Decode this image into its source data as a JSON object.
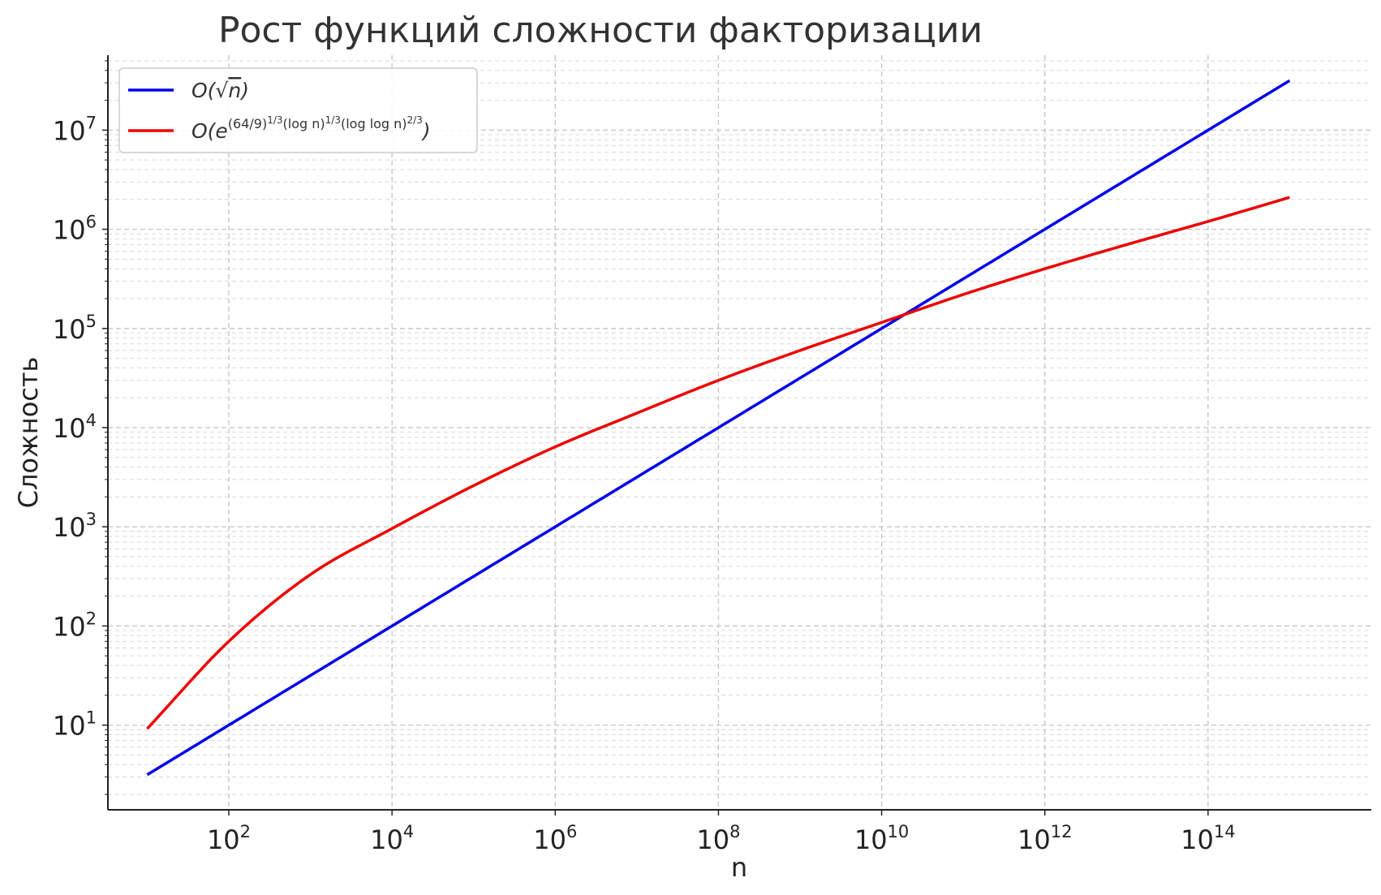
{
  "chart_data": {
    "type": "line",
    "title": "Рост функций сложности факторизации",
    "xlabel": "n",
    "ylabel": "Сложность",
    "xscale": "log",
    "yscale": "log",
    "xlim": [
      3.3,
      10000000000000000
    ],
    "ylim": [
      1.4,
      57000000
    ],
    "xticks": [
      {
        "value": 100,
        "base": "10",
        "exp": "2"
      },
      {
        "value": 10000,
        "base": "10",
        "exp": "4"
      },
      {
        "value": 1000000,
        "base": "10",
        "exp": "6"
      },
      {
        "value": 100000000,
        "base": "10",
        "exp": "8"
      },
      {
        "value": 10000000000,
        "base": "10",
        "exp": "10"
      },
      {
        "value": 1000000000000,
        "base": "10",
        "exp": "12"
      },
      {
        "value": 100000000000000,
        "base": "10",
        "exp": "14"
      }
    ],
    "yticks": [
      {
        "value": 10,
        "base": "10",
        "exp": "1"
      },
      {
        "value": 100,
        "base": "10",
        "exp": "2"
      },
      {
        "value": 1000,
        "base": "10",
        "exp": "3"
      },
      {
        "value": 10000,
        "base": "10",
        "exp": "4"
      },
      {
        "value": 100000,
        "base": "10",
        "exp": "5"
      },
      {
        "value": 1000000,
        "base": "10",
        "exp": "6"
      },
      {
        "value": 10000000,
        "base": "10",
        "exp": "7"
      }
    ],
    "grid": true,
    "legend_position": "top-left",
    "series": [
      {
        "name": "O(√n)",
        "color": "#0000ee",
        "x": [
          10,
          100,
          10000,
          1000000,
          100000000,
          10000000000,
          1000000000000,
          100000000000000,
          1000000000000000
        ],
        "y": [
          3.16,
          10,
          100,
          1000,
          10000,
          100000,
          1000000,
          10000000,
          31600000
        ]
      },
      {
        "name": "O(e^{(64/9)^{1/3}(log n)^{1/3}(log log n)^{2/3}})",
        "color": "#ee0000",
        "x": [
          10,
          100,
          1000,
          10000,
          100000,
          1000000,
          10000000,
          100000000,
          1000000000,
          10000000000,
          100000000000,
          1000000000000,
          10000000000000,
          100000000000000,
          1000000000000000
        ],
        "y": [
          9.2,
          70,
          330,
          960,
          2600,
          6400,
          14000,
          30000,
          60000,
          115000,
          220000,
          400000,
          700000,
          1200000,
          2100000
        ]
      }
    ]
  }
}
